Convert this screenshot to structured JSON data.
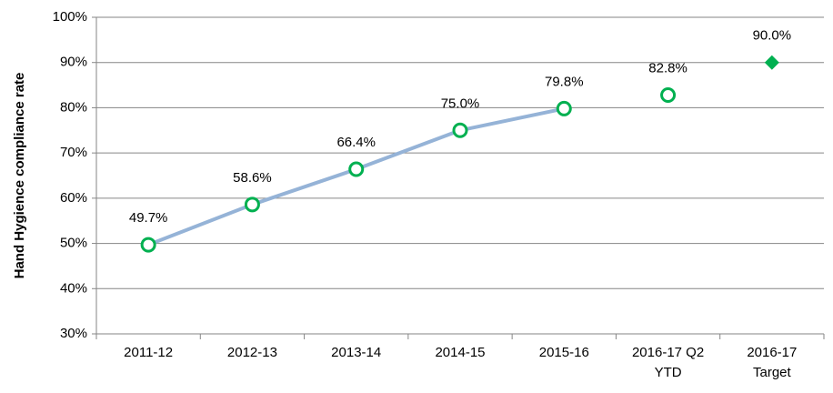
{
  "chart_data": {
    "type": "line",
    "y_label": "Hand Hygience compliance rate",
    "categories": [
      "2011-12",
      "2012-13",
      "2013-14",
      "2014-15",
      "2015-16",
      "2016-17 Q2\nYTD",
      "2016-17\nTarget"
    ],
    "series": [
      {
        "color": "#95b3d7",
        "marker_color": "#00b050",
        "marker": "circle",
        "line": true,
        "values": [
          49.7,
          58.6,
          66.4,
          75.0,
          79.8,
          null,
          null
        ],
        "value_labels": [
          "49.7%",
          "58.6%",
          "66.4%",
          "75.0%",
          "79.8%",
          null,
          null
        ]
      },
      {
        "color": "#95b3d7",
        "marker_color": "#00b050",
        "marker": "circle",
        "line": false,
        "values": [
          null,
          null,
          null,
          null,
          null,
          82.8,
          null
        ],
        "value_labels": [
          null,
          null,
          null,
          null,
          null,
          "82.8%",
          null
        ]
      },
      {
        "color": "#00b050",
        "marker_color": "#00b050",
        "marker": "diamond",
        "line": false,
        "values": [
          null,
          null,
          null,
          null,
          null,
          null,
          90.0
        ],
        "value_labels": [
          null,
          null,
          null,
          null,
          null,
          null,
          "90.0%"
        ]
      }
    ],
    "ylim": [
      30,
      100
    ],
    "yticks": [
      {
        "value": 30,
        "label": "30%"
      },
      {
        "value": 40,
        "label": "40%"
      },
      {
        "value": 50,
        "label": "50%"
      },
      {
        "value": 60,
        "label": "60%"
      },
      {
        "value": 70,
        "label": "70%"
      },
      {
        "value": 80,
        "label": "80%"
      },
      {
        "value": 90,
        "label": "90%"
      },
      {
        "value": 100,
        "label": "100%"
      }
    ],
    "grid": true
  }
}
